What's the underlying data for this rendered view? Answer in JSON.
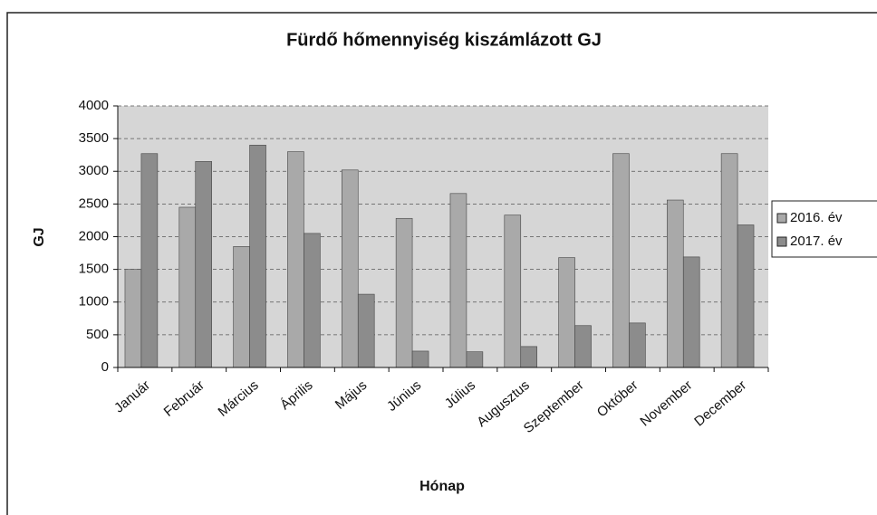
{
  "chart_data": {
    "type": "bar",
    "title": "Fürdő hőmennyiség kiszámlázott GJ",
    "x_label": "Hónap",
    "y_label": "GJ",
    "categories": [
      "Január",
      "Február",
      "Március",
      "Április",
      "Május",
      "Június",
      "Július",
      "Augusztus",
      "Szeptember",
      "Október",
      "November",
      "December"
    ],
    "series": [
      {
        "name": "2016. év",
        "color": "#a9a9a9",
        "values": [
          1500,
          2450,
          1850,
          3300,
          3020,
          2280,
          2660,
          2330,
          1680,
          3270,
          2560,
          3270
        ]
      },
      {
        "name": "2017. év",
        "color": "#8c8c8c",
        "values": [
          3270,
          3150,
          3400,
          2050,
          1120,
          250,
          240,
          320,
          640,
          680,
          1690,
          2180
        ]
      }
    ],
    "ylim": [
      0,
      4000
    ],
    "yticks": [
      0,
      500,
      1000,
      1500,
      2000,
      2500,
      3000,
      3500,
      4000
    ],
    "grid": true,
    "legend": "right"
  }
}
